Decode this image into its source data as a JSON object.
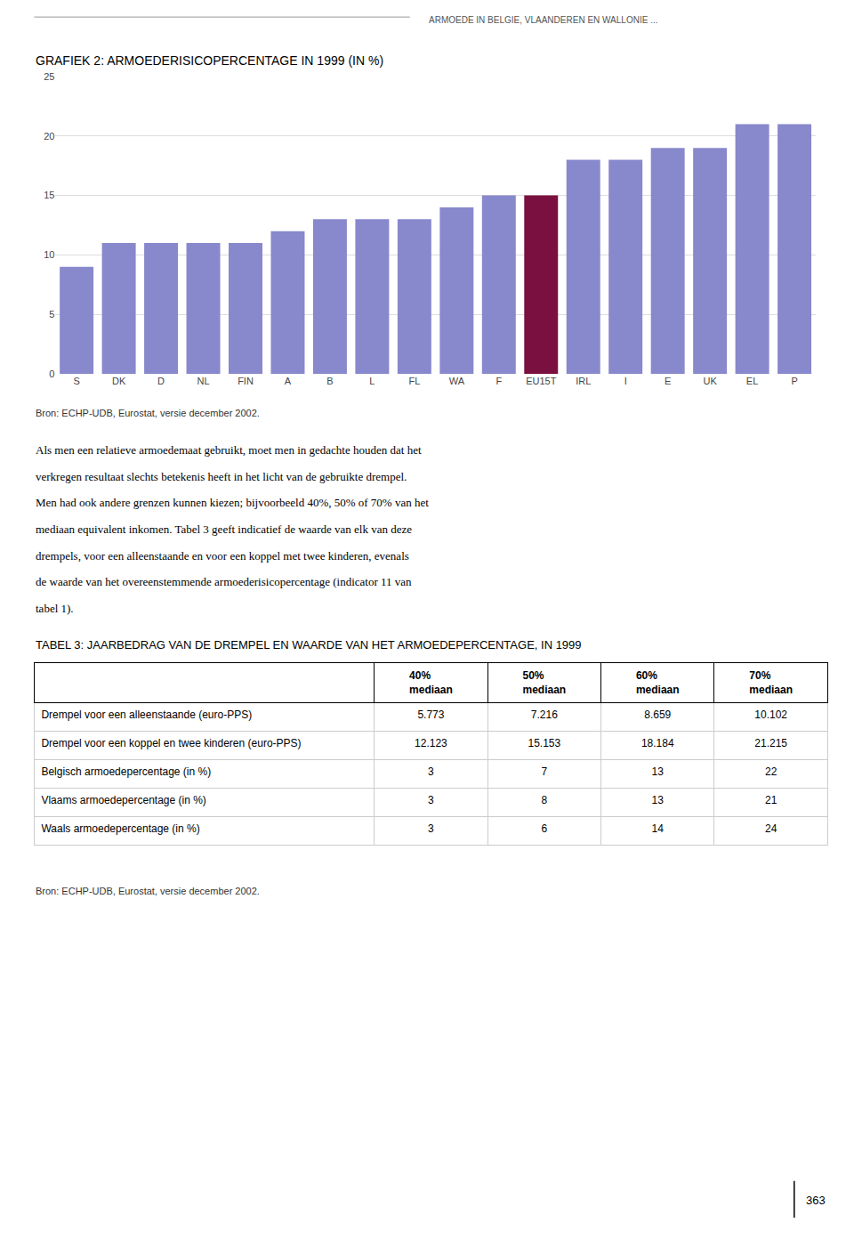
{
  "header": "ARMOEDE IN BELGIE, VLAANDEREN EN WALLONIE ...",
  "paragraph": [
    "Als men een relatieve armoedemaat gebruikt, moet men in gedachte houden dat het",
    "verkregen resultaat slechts betekenis heeft in het licht van de gebruikte drempel.",
    "Men had ook andere grenzen kunnen kiezen; bijvoorbeeld 40%, 50% of 70% van het",
    "mediaan equivalent inkomen. Tabel 3 geeft indicatief de waarde van elk van deze",
    "drempels, voor een alleenstaande en voor een koppel met twee kinderen, evenals",
    "de waarde van het overeenstemmende armoederisicopercentage (indicator 11 van",
    "tabel 1)."
  ],
  "page_number": "363",
  "chart_data": [
    {
      "type": "bar",
      "title": "GRAFIEK 2: ARMOEDERISICOPERCENTAGE IN 1999 (IN %)",
      "categories": [
        "S",
        "DK",
        "D",
        "NL",
        "FIN",
        "A",
        "B",
        "L",
        "FL",
        "WA",
        "F",
        "EU15T",
        "IRL",
        "I",
        "E",
        "UK",
        "EL",
        "P"
      ],
      "values": [
        9,
        11,
        11,
        11,
        11,
        12,
        13,
        13,
        13,
        14,
        15,
        15,
        18,
        18,
        19,
        19,
        21,
        21
      ],
      "colors": [
        "#8888cc",
        "#8888cc",
        "#8888cc",
        "#8888cc",
        "#8888cc",
        "#8888cc",
        "#8888cc",
        "#8888cc",
        "#8888cc",
        "#8888cc",
        "#8888cc",
        "#7a1040",
        "#8888cc",
        "#8888cc",
        "#8888cc",
        "#8888cc",
        "#8888cc",
        "#8888cc"
      ],
      "ylim": [
        0,
        25
      ],
      "yticks": [
        0,
        5,
        10,
        15,
        20,
        25
      ],
      "grid": true,
      "source": "Bron: ECHP-UDB, Eurostat, versie december 2002."
    },
    {
      "type": "table",
      "title": "TABEL 3: JAARBEDRAG VAN DE DREMPEL EN WAARDE VAN HET ARMOEDEPERCENTAGE, IN 1999",
      "columns": [
        "40%\nmediaan",
        "50%\nmediaan",
        "60%\nmediaan",
        "70%\nmediaan"
      ],
      "rows": [
        "Drempel voor een alleenstaande (euro-PPS)",
        "Drempel voor een koppel en twee kinderen (euro-PPS)",
        "Belgisch armoedepercentage (in %)",
        "Vlaams armoedepercentage (in %)",
        "Waals armoedepercentage (in %)"
      ],
      "cells": [
        [
          "5.773",
          "7.216",
          "8.659",
          "10.102"
        ],
        [
          "12.123",
          "15.153",
          "18.184",
          "21.215"
        ],
        [
          "3",
          "7",
          "13",
          "22"
        ],
        [
          "3",
          "8",
          "13",
          "21"
        ],
        [
          "3",
          "6",
          "14",
          "24"
        ]
      ],
      "source": "Bron: ECHP-UDB, Eurostat, versie december 2002."
    }
  ]
}
